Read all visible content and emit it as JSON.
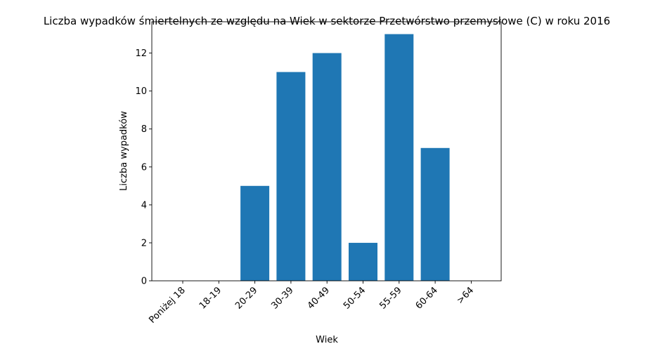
{
  "chart_data": {
    "type": "bar",
    "title": "Liczba wypadków śmiertelnych ze względu na Wiek w sektorze Przetwórstwo przemysłowe (C)   w roku 2016",
    "xlabel": "Wiek",
    "ylabel": "Liczba wypadków",
    "categories": [
      "Poniżej 18",
      "18-19",
      "20-29",
      "30-39",
      "40-49",
      "50-54",
      "55-59",
      "60-64",
      ">64"
    ],
    "values": [
      0,
      0,
      5,
      11,
      12,
      2,
      13,
      7,
      0
    ],
    "ylim": [
      0,
      13.65
    ],
    "yticks": [
      0,
      2,
      4,
      6,
      8,
      10,
      12
    ],
    "bar_color": "#1f77b4",
    "grid": false,
    "legend": "none"
  }
}
